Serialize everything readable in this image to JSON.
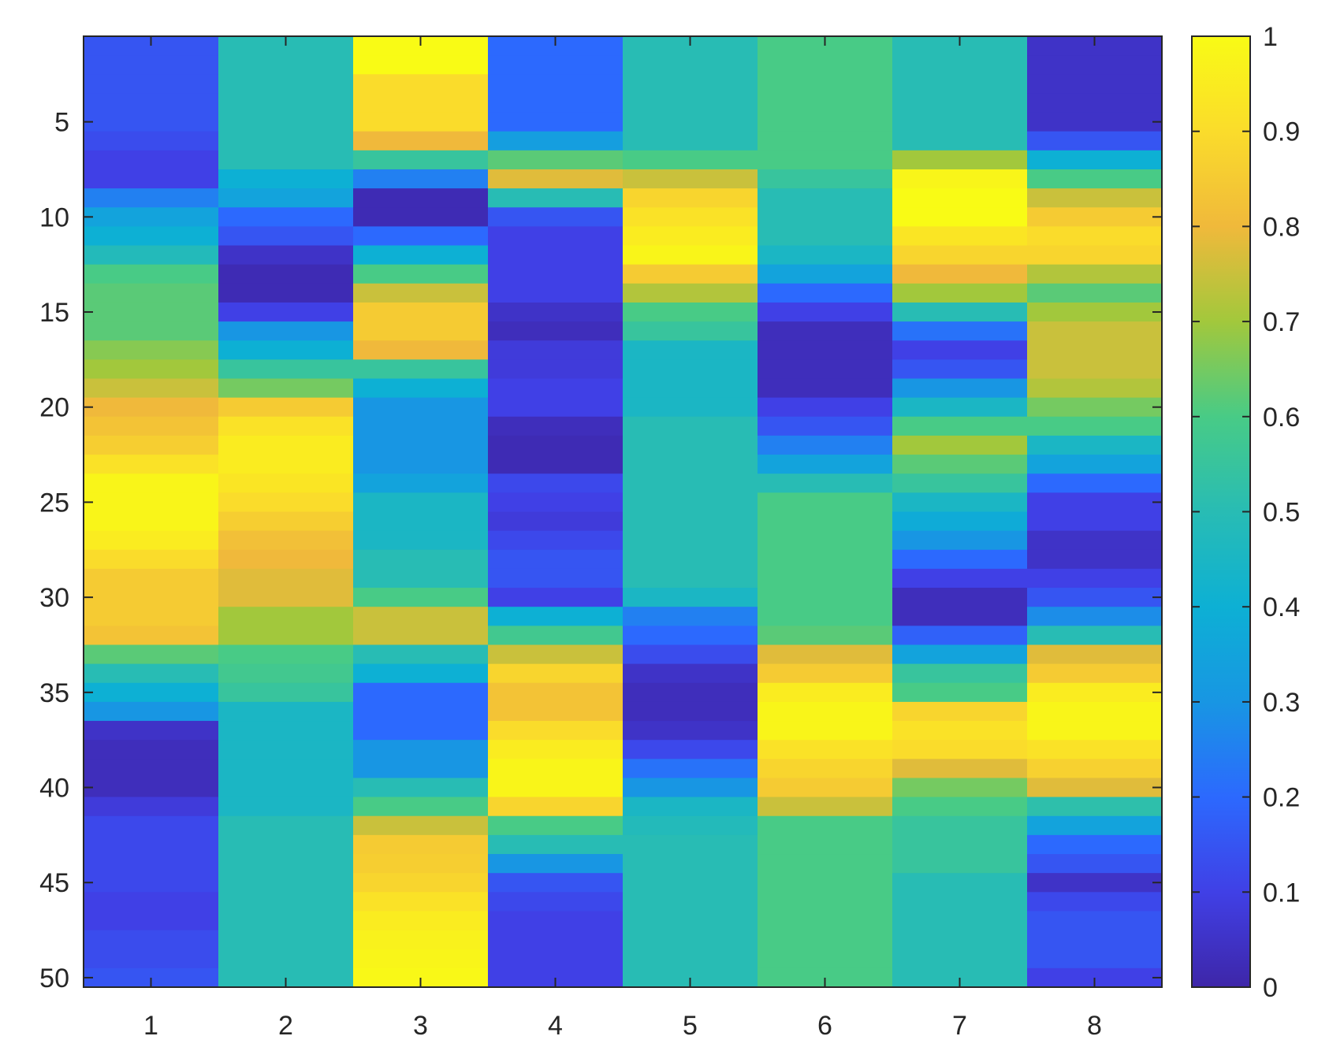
{
  "chart_data": {
    "type": "heatmap",
    "title": "",
    "xlabel": "",
    "ylabel": "",
    "x": [
      1,
      2,
      3,
      4,
      5,
      6,
      7,
      8
    ],
    "y": [
      1,
      50
    ],
    "x_ticks": [
      "1",
      "2",
      "3",
      "4",
      "5",
      "6",
      "7",
      "8"
    ],
    "y_ticks": [
      "5",
      "10",
      "15",
      "20",
      "25",
      "30",
      "35",
      "40",
      "45",
      "50"
    ],
    "y_direction": "reverse",
    "colorbar": {
      "range": [
        0,
        1
      ],
      "ticks": [
        "0",
        "0.1",
        "0.2",
        "0.3",
        "0.4",
        "0.5",
        "0.6",
        "0.7",
        "0.8",
        "0.9",
        "1"
      ],
      "colormap": [
        "#3e26a8",
        "#4040e6",
        "#2c69fe",
        "#1896e3",
        "#0db0d4",
        "#28bcb4",
        "#48cb86",
        "#a2c83c",
        "#f0b93b",
        "#fadc2b",
        "#f9fb15"
      ]
    },
    "columns": [
      [
        0.15,
        0.15,
        0.15,
        0.15,
        0.15,
        0.13,
        0.1,
        0.1,
        0.25,
        0.35,
        0.4,
        0.48,
        0.6,
        0.62,
        0.62,
        0.62,
        0.67,
        0.7,
        0.75,
        0.8,
        0.83,
        0.86,
        0.92,
        0.98,
        0.98,
        0.98,
        0.95,
        0.9,
        0.85,
        0.85,
        0.85,
        0.83,
        0.62,
        0.5,
        0.4,
        0.3,
        0.05,
        0.03,
        0.03,
        0.03,
        0.08,
        0.12,
        0.12,
        0.12,
        0.12,
        0.1,
        0.1,
        0.13,
        0.13,
        0.15
      ],
      [
        0.5,
        0.5,
        0.5,
        0.5,
        0.5,
        0.5,
        0.5,
        0.4,
        0.35,
        0.2,
        0.15,
        0.05,
        0.02,
        0.02,
        0.1,
        0.3,
        0.4,
        0.55,
        0.65,
        0.85,
        0.92,
        0.95,
        0.95,
        0.93,
        0.9,
        0.86,
        0.82,
        0.8,
        0.78,
        0.78,
        0.7,
        0.7,
        0.6,
        0.58,
        0.55,
        0.45,
        0.45,
        0.45,
        0.45,
        0.45,
        0.45,
        0.5,
        0.5,
        0.5,
        0.5,
        0.5,
        0.5,
        0.5,
        0.5,
        0.5
      ],
      [
        1,
        1,
        0.9,
        0.9,
        0.9,
        0.8,
        0.55,
        0.25,
        0.02,
        0.02,
        0.2,
        0.4,
        0.6,
        0.75,
        0.85,
        0.85,
        0.8,
        0.55,
        0.4,
        0.3,
        0.3,
        0.3,
        0.3,
        0.35,
        0.45,
        0.45,
        0.45,
        0.5,
        0.5,
        0.6,
        0.75,
        0.75,
        0.5,
        0.4,
        0.2,
        0.2,
        0.2,
        0.3,
        0.3,
        0.5,
        0.6,
        0.75,
        0.85,
        0.86,
        0.88,
        0.92,
        0.95,
        0.97,
        0.98,
        0.99
      ],
      [
        0.2,
        0.2,
        0.2,
        0.2,
        0.2,
        0.33,
        0.62,
        0.78,
        0.5,
        0.15,
        0.1,
        0.1,
        0.1,
        0.1,
        0.05,
        0.03,
        0.08,
        0.08,
        0.1,
        0.1,
        0.03,
        0.02,
        0.02,
        0.12,
        0.1,
        0.08,
        0.12,
        0.15,
        0.15,
        0.1,
        0.4,
        0.58,
        0.75,
        0.88,
        0.83,
        0.83,
        0.9,
        0.95,
        0.98,
        0.98,
        0.88,
        0.6,
        0.5,
        0.3,
        0.15,
        0.12,
        0.1,
        0.1,
        0.1,
        0.1
      ],
      [
        0.5,
        0.5,
        0.5,
        0.5,
        0.5,
        0.5,
        0.6,
        0.75,
        0.88,
        0.92,
        0.95,
        0.98,
        0.85,
        0.72,
        0.6,
        0.55,
        0.45,
        0.45,
        0.45,
        0.45,
        0.5,
        0.5,
        0.5,
        0.5,
        0.5,
        0.5,
        0.5,
        0.5,
        0.5,
        0.45,
        0.25,
        0.2,
        0.13,
        0.05,
        0.03,
        0.03,
        0.05,
        0.12,
        0.22,
        0.3,
        0.45,
        0.48,
        0.5,
        0.5,
        0.5,
        0.5,
        0.5,
        0.5,
        0.5,
        0.5
      ],
      [
        0.6,
        0.6,
        0.6,
        0.6,
        0.6,
        0.6,
        0.6,
        0.55,
        0.5,
        0.5,
        0.5,
        0.45,
        0.35,
        0.2,
        0.1,
        0.03,
        0.03,
        0.03,
        0.03,
        0.1,
        0.15,
        0.25,
        0.35,
        0.5,
        0.6,
        0.6,
        0.6,
        0.6,
        0.6,
        0.6,
        0.6,
        0.62,
        0.78,
        0.85,
        0.95,
        0.98,
        0.98,
        0.92,
        0.88,
        0.85,
        0.75,
        0.6,
        0.6,
        0.6,
        0.6,
        0.6,
        0.6,
        0.6,
        0.6,
        0.6
      ],
      [
        0.5,
        0.5,
        0.5,
        0.5,
        0.5,
        0.5,
        0.7,
        0.98,
        1,
        1,
        0.93,
        0.88,
        0.8,
        0.7,
        0.5,
        0.22,
        0.1,
        0.15,
        0.3,
        0.45,
        0.6,
        0.7,
        0.62,
        0.55,
        0.45,
        0.38,
        0.3,
        0.2,
        0.1,
        0.03,
        0.03,
        0.18,
        0.35,
        0.55,
        0.6,
        0.88,
        0.92,
        0.9,
        0.78,
        0.65,
        0.6,
        0.55,
        0.55,
        0.55,
        0.5,
        0.5,
        0.5,
        0.5,
        0.5,
        0.5
      ],
      [
        0.05,
        0.05,
        0.05,
        0.05,
        0.05,
        0.15,
        0.4,
        0.6,
        0.75,
        0.85,
        0.9,
        0.88,
        0.72,
        0.62,
        0.7,
        0.75,
        0.75,
        0.75,
        0.72,
        0.65,
        0.6,
        0.45,
        0.35,
        0.2,
        0.1,
        0.1,
        0.05,
        0.05,
        0.1,
        0.15,
        0.28,
        0.5,
        0.78,
        0.85,
        0.95,
        0.98,
        0.98,
        0.92,
        0.87,
        0.78,
        0.52,
        0.35,
        0.2,
        0.15,
        0.05,
        0.12,
        0.15,
        0.15,
        0.15,
        0.1
      ]
    ]
  }
}
